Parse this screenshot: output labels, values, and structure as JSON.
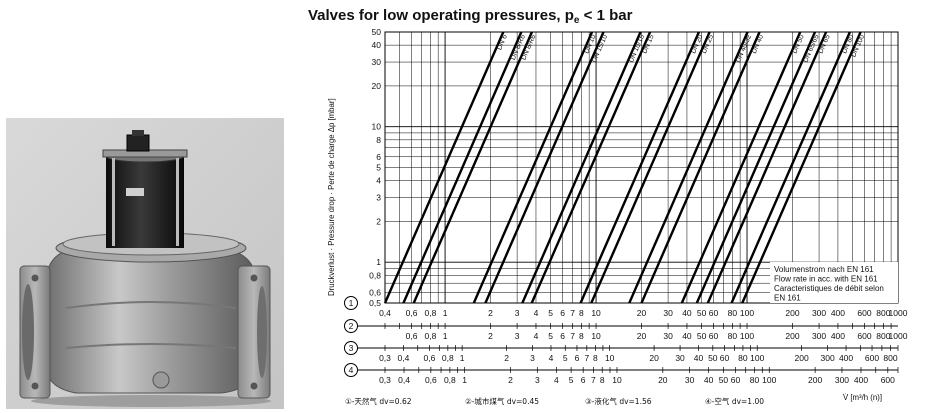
{
  "chart_data": {
    "type": "line",
    "title_main": "Valves for low operating pressures, p",
    "title_sub": "e",
    "title_tail": " < 1 bar",
    "ylabel": "Druckverlust · Pressure drop · Perte de charge Δp [mbar]",
    "xlabel": "V̇ [m³/h (n)]",
    "y_scale": "log",
    "ylim": [
      0.5,
      50
    ],
    "y_ticks": [
      "0,5",
      "0,6",
      "0,8",
      "1",
      "2",
      "3",
      "4",
      "5",
      "6",
      "8",
      "10",
      "20",
      "30",
      "40",
      "50"
    ],
    "y_tick_values": [
      0.5,
      0.6,
      0.8,
      1,
      2,
      3,
      4,
      5,
      6,
      8,
      10,
      20,
      30,
      40,
      50
    ],
    "x_scale": "log",
    "xlim": [
      0.4,
      1000
    ],
    "grid": true,
    "note": [
      "Volumenstrom nach EN 161",
      "Flow rate in acc. with EN 161",
      "Caracteristiques de débit selon",
      "EN 161"
    ],
    "series": [
      {
        "name": "DN 6",
        "x": [
          0.4,
          2.43
        ],
        "y": [
          0.5,
          50
        ]
      },
      {
        "name": "DN 8/R6",
        "x": [
          0.53,
          3.2
        ],
        "y": [
          0.5,
          50
        ]
      },
      {
        "name": "DN 8/R6",
        "x": [
          0.62,
          3.76
        ],
        "y": [
          0.5,
          50
        ]
      },
      {
        "name": "DN 10",
        "x": [
          1.55,
          9.4
        ],
        "y": [
          0.5,
          50
        ]
      },
      {
        "name": "DN 15/10",
        "x": [
          1.85,
          11.2
        ],
        "y": [
          0.5,
          50
        ]
      },
      {
        "name": "DN 10/15",
        "x": [
          3.25,
          19.7
        ],
        "y": [
          0.5,
          50
        ]
      },
      {
        "name": "DN 15",
        "x": [
          3.75,
          22.8
        ],
        "y": [
          0.5,
          50
        ]
      },
      {
        "name": "DN 20",
        "x": [
          7.9,
          48
        ],
        "y": [
          0.5,
          50
        ]
      },
      {
        "name": "DN 25",
        "x": [
          9.3,
          56.5
        ],
        "y": [
          0.5,
          50
        ]
      },
      {
        "name": "DN 40/32",
        "x": [
          16.6,
          100.8
        ],
        "y": [
          0.5,
          50
        ]
      },
      {
        "name": "DN 40",
        "x": [
          20,
          121
        ],
        "y": [
          0.5,
          50
        ]
      },
      {
        "name": "DN 50",
        "x": [
          37,
          225
        ],
        "y": [
          0.5,
          50
        ]
      },
      {
        "name": "DN 65/65",
        "x": [
          46.5,
          282
        ],
        "y": [
          0.5,
          50
        ]
      },
      {
        "name": "DN 65",
        "x": [
          55,
          334
        ],
        "y": [
          0.5,
          50
        ]
      },
      {
        "name": "DN 80",
        "x": [
          79,
          480
        ],
        "y": [
          0.5,
          50
        ]
      },
      {
        "name": "DN 100",
        "x": [
          93,
          565
        ],
        "y": [
          0.5,
          50
        ]
      }
    ],
    "scales": [
      {
        "id": "1",
        "xmin": 0.4,
        "xmax": 1000,
        "labels": [
          {
            "v": 0.4,
            "t": "0,4"
          },
          {
            "v": 0.6,
            "t": "0,6"
          },
          {
            "v": 0.8,
            "t": "0,8"
          },
          {
            "v": 1,
            "t": "1"
          },
          {
            "v": 2,
            "t": "2"
          },
          {
            "v": 3,
            "t": "3"
          },
          {
            "v": 4,
            "t": "4"
          },
          {
            "v": 5,
            "t": "5"
          },
          {
            "v": 6,
            "t": "6"
          },
          {
            "v": 7,
            "t": "7"
          },
          {
            "v": 8,
            "t": "8"
          },
          {
            "v": 10,
            "t": "10"
          },
          {
            "v": 20,
            "t": "20"
          },
          {
            "v": 30,
            "t": "30"
          },
          {
            "v": 40,
            "t": "40"
          },
          {
            "v": 50,
            "t": "50"
          },
          {
            "v": 60,
            "t": "60"
          },
          {
            "v": 80,
            "t": "80"
          },
          {
            "v": 100,
            "t": "100"
          },
          {
            "v": 200,
            "t": "200"
          },
          {
            "v": 300,
            "t": "300"
          },
          {
            "v": 400,
            "t": "400"
          },
          {
            "v": 600,
            "t": "600"
          },
          {
            "v": 800,
            "t": "800"
          },
          {
            "v": 1000,
            "t": "1000"
          }
        ]
      },
      {
        "id": "2",
        "xmin": 0.4,
        "xmax": 1000,
        "labels": [
          {
            "v": 0.6,
            "t": "0,6"
          },
          {
            "v": 0.8,
            "t": "0,8"
          },
          {
            "v": 1,
            "t": "1"
          },
          {
            "v": 2,
            "t": "2"
          },
          {
            "v": 3,
            "t": "3"
          },
          {
            "v": 4,
            "t": "4"
          },
          {
            "v": 5,
            "t": "5"
          },
          {
            "v": 6,
            "t": "6"
          },
          {
            "v": 7,
            "t": "7"
          },
          {
            "v": 8,
            "t": "8"
          },
          {
            "v": 10,
            "t": "10"
          },
          {
            "v": 20,
            "t": "20"
          },
          {
            "v": 30,
            "t": "30"
          },
          {
            "v": 40,
            "t": "40"
          },
          {
            "v": 50,
            "t": "50"
          },
          {
            "v": 60,
            "t": "60"
          },
          {
            "v": 80,
            "t": "80"
          },
          {
            "v": 100,
            "t": "100"
          },
          {
            "v": 200,
            "t": "200"
          },
          {
            "v": 300,
            "t": "300"
          },
          {
            "v": 400,
            "t": "400"
          },
          {
            "v": 600,
            "t": "600"
          },
          {
            "v": 800,
            "t": "800"
          },
          {
            "v": 1000,
            "t": "1000"
          }
        ]
      },
      {
        "id": "3",
        "xmin": 0.3,
        "xmax": 900,
        "labels": [
          {
            "v": 0.3,
            "t": "0,3"
          },
          {
            "v": 0.4,
            "t": "0,4"
          },
          {
            "v": 0.6,
            "t": "0,6"
          },
          {
            "v": 0.8,
            "t": "0,8"
          },
          {
            "v": 1,
            "t": "1"
          },
          {
            "v": 2,
            "t": "2"
          },
          {
            "v": 3,
            "t": "3"
          },
          {
            "v": 4,
            "t": "4"
          },
          {
            "v": 5,
            "t": "5"
          },
          {
            "v": 6,
            "t": "6"
          },
          {
            "v": 7,
            "t": "7"
          },
          {
            "v": 8,
            "t": "8"
          },
          {
            "v": 10,
            "t": "10"
          },
          {
            "v": 20,
            "t": "20"
          },
          {
            "v": 30,
            "t": "30"
          },
          {
            "v": 40,
            "t": "40"
          },
          {
            "v": 50,
            "t": "50"
          },
          {
            "v": 60,
            "t": "60"
          },
          {
            "v": 80,
            "t": "80"
          },
          {
            "v": 100,
            "t": "100"
          },
          {
            "v": 200,
            "t": "200"
          },
          {
            "v": 300,
            "t": "300"
          },
          {
            "v": 400,
            "t": "400"
          },
          {
            "v": 600,
            "t": "600"
          },
          {
            "v": 800,
            "t": "800"
          }
        ]
      },
      {
        "id": "4",
        "xmin": 0.3,
        "xmax": 700,
        "labels": [
          {
            "v": 0.3,
            "t": "0,3"
          },
          {
            "v": 0.4,
            "t": "0,4"
          },
          {
            "v": 0.6,
            "t": "0,6"
          },
          {
            "v": 0.8,
            "t": "0,8"
          },
          {
            "v": 1,
            "t": "1"
          },
          {
            "v": 2,
            "t": "2"
          },
          {
            "v": 3,
            "t": "3"
          },
          {
            "v": 4,
            "t": "4"
          },
          {
            "v": 5,
            "t": "5"
          },
          {
            "v": 6,
            "t": "6"
          },
          {
            "v": 7,
            "t": "7"
          },
          {
            "v": 8,
            "t": "8"
          },
          {
            "v": 10,
            "t": "10"
          },
          {
            "v": 20,
            "t": "20"
          },
          {
            "v": 30,
            "t": "30"
          },
          {
            "v": 40,
            "t": "40"
          },
          {
            "v": 50,
            "t": "50"
          },
          {
            "v": 60,
            "t": "60"
          },
          {
            "v": 80,
            "t": "80"
          },
          {
            "v": 100,
            "t": "100"
          },
          {
            "v": 200,
            "t": "200"
          },
          {
            "v": 300,
            "t": "300"
          },
          {
            "v": 400,
            "t": "400"
          },
          {
            "v": 600,
            "t": "600"
          }
        ]
      }
    ],
    "legend": [
      "①-天然气 dv=0.62",
      "②-城市煤气 dv=0.45",
      "③-液化气 dv=1.56",
      "④-空气 dv=1.00"
    ]
  }
}
